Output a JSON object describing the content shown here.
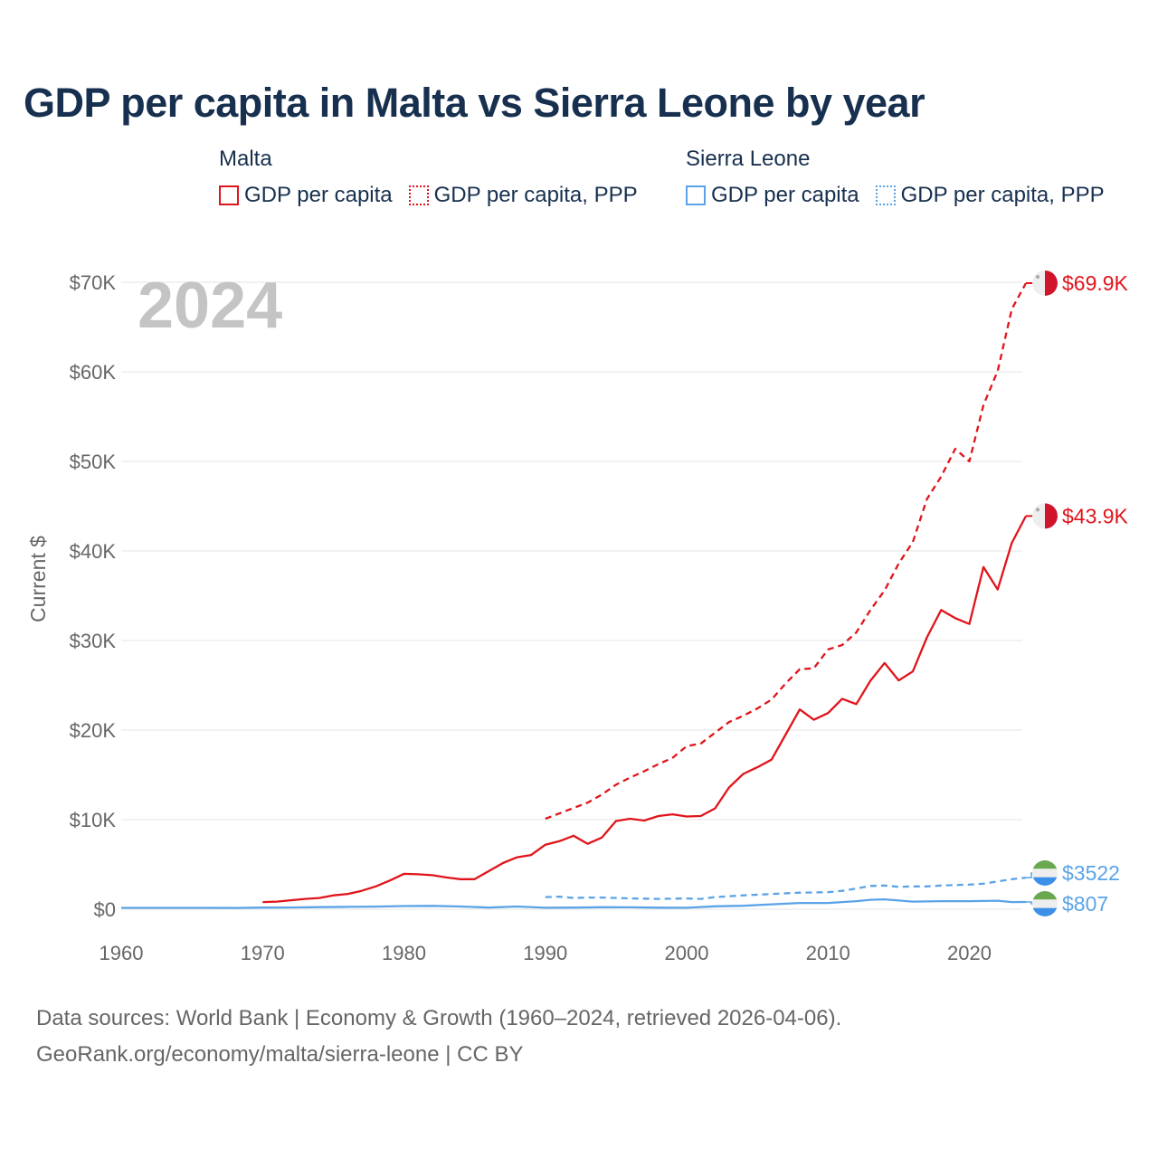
{
  "title": "GDP per capita in Malta vs Sierra Leone by year",
  "legend": {
    "groups": [
      {
        "name": "Malta",
        "items": [
          "GDP per capita",
          "GDP per capita, PPP"
        ]
      },
      {
        "name": "Sierra Leone",
        "items": [
          "GDP per capita",
          "GDP per capita, PPP"
        ]
      }
    ]
  },
  "year_label": "2024",
  "footer": {
    "line1": "Data sources: World Bank | Economy & Growth (1960–2024, retrieved 2026-04-06).",
    "line2": "GeoRank.org/economy/malta/sierra-leone | CC BY"
  },
  "colors": {
    "malta": "#e0141b",
    "sierra_leone": "#5ba3e6",
    "title": "#17304f"
  },
  "chart_data": {
    "type": "line",
    "ylabel": "Current $",
    "xlim": [
      1960,
      2024
    ],
    "ylim": [
      0,
      70000
    ],
    "y_ticks": [
      0,
      10000,
      20000,
      30000,
      40000,
      50000,
      60000,
      70000
    ],
    "y_tick_labels": [
      "$0",
      "$10K",
      "$20K",
      "$30K",
      "$40K",
      "$50K",
      "$60K",
      "$70K"
    ],
    "x_ticks": [
      1960,
      1970,
      1980,
      1990,
      2000,
      2010,
      2020
    ],
    "x_tick_labels": [
      "1960",
      "1970",
      "1980",
      "1990",
      "2000",
      "2010",
      "2020"
    ],
    "series": [
      {
        "name": "Malta GDP per capita",
        "country": "Malta",
        "style": "solid",
        "color": "#e0141b",
        "end_label": "$43.9K",
        "x": [
          1970,
          1971,
          1972,
          1973,
          1974,
          1975,
          1976,
          1977,
          1978,
          1979,
          1980,
          1981,
          1982,
          1983,
          1984,
          1985,
          1986,
          1987,
          1988,
          1989,
          1990,
          1991,
          1992,
          1993,
          1994,
          1995,
          1996,
          1997,
          1998,
          1999,
          2000,
          2001,
          2002,
          2003,
          2004,
          2005,
          2006,
          2007,
          2008,
          2009,
          2010,
          2011,
          2012,
          2013,
          2014,
          2015,
          2016,
          2017,
          2018,
          2019,
          2020,
          2021,
          2022,
          2023,
          2024
        ],
        "y": [
          800,
          850,
          1000,
          1150,
          1250,
          1550,
          1700,
          2050,
          2550,
          3200,
          3950,
          3900,
          3800,
          3550,
          3350,
          3350,
          4250,
          5150,
          5800,
          6050,
          7200,
          7600,
          8200,
          7300,
          8000,
          9850,
          10100,
          9900,
          10400,
          10600,
          10350,
          10400,
          11250,
          13600,
          15100,
          15850,
          16700,
          19500,
          22300,
          21150,
          21900,
          23500,
          22900,
          25500,
          27500,
          25550,
          26550,
          30350,
          33400,
          32500,
          31850,
          38200,
          35700,
          40900,
          43900
        ]
      },
      {
        "name": "Malta GDP per capita, PPP",
        "country": "Malta",
        "style": "dashed",
        "color": "#e0141b",
        "end_label": "$69.9K",
        "x": [
          1990,
          1991,
          1992,
          1993,
          1994,
          1995,
          1996,
          1997,
          1998,
          1999,
          2000,
          2001,
          2002,
          2003,
          2004,
          2005,
          2006,
          2007,
          2008,
          2009,
          2010,
          2011,
          2012,
          2013,
          2014,
          2015,
          2016,
          2017,
          2018,
          2019,
          2020,
          2021,
          2022,
          2023,
          2024
        ],
        "y": [
          10100,
          10700,
          11300,
          11900,
          12800,
          13900,
          14700,
          15400,
          16200,
          16900,
          18200,
          18500,
          19700,
          20900,
          21600,
          22400,
          23400,
          25200,
          26800,
          26900,
          29000,
          29500,
          30900,
          33400,
          35600,
          38600,
          41000,
          45800,
          48300,
          51400,
          50000,
          56300,
          60100,
          67000,
          69900
        ]
      },
      {
        "name": "Sierra Leone GDP per capita",
        "country": "Sierra Leone",
        "style": "solid",
        "color": "#5ba3e6",
        "end_label": "$807",
        "x": [
          1960,
          1962,
          1964,
          1966,
          1968,
          1970,
          1972,
          1974,
          1976,
          1978,
          1980,
          1982,
          1984,
          1986,
          1988,
          1990,
          1992,
          1994,
          1996,
          1998,
          2000,
          2002,
          2004,
          2006,
          2008,
          2010,
          2012,
          2013,
          2014,
          2016,
          2018,
          2020,
          2022,
          2023,
          2024
        ],
        "y": [
          150,
          150,
          150,
          150,
          140,
          180,
          190,
          230,
          260,
          290,
          350,
          370,
          300,
          180,
          300,
          160,
          180,
          220,
          210,
          170,
          160,
          320,
          380,
          550,
          700,
          700,
          900,
          1050,
          1100,
          850,
          900,
          900,
          950,
          800,
          807
        ]
      },
      {
        "name": "Sierra Leone GDP per capita, PPP",
        "country": "Sierra Leone",
        "style": "dashed",
        "color": "#5ba3e6",
        "end_label": "$3522",
        "x": [
          1990,
          1991,
          1992,
          1993,
          1994,
          1996,
          1998,
          2000,
          2001,
          2002,
          2004,
          2006,
          2008,
          2010,
          2011,
          2012,
          2013,
          2014,
          2015,
          2016,
          2017,
          2018,
          2020,
          2021,
          2022,
          2023,
          2024
        ],
        "y": [
          1350,
          1400,
          1250,
          1300,
          1300,
          1200,
          1150,
          1200,
          1150,
          1350,
          1550,
          1700,
          1850,
          1900,
          2050,
          2300,
          2600,
          2650,
          2500,
          2550,
          2550,
          2650,
          2750,
          2850,
          3100,
          3350,
          3522
        ]
      }
    ]
  }
}
